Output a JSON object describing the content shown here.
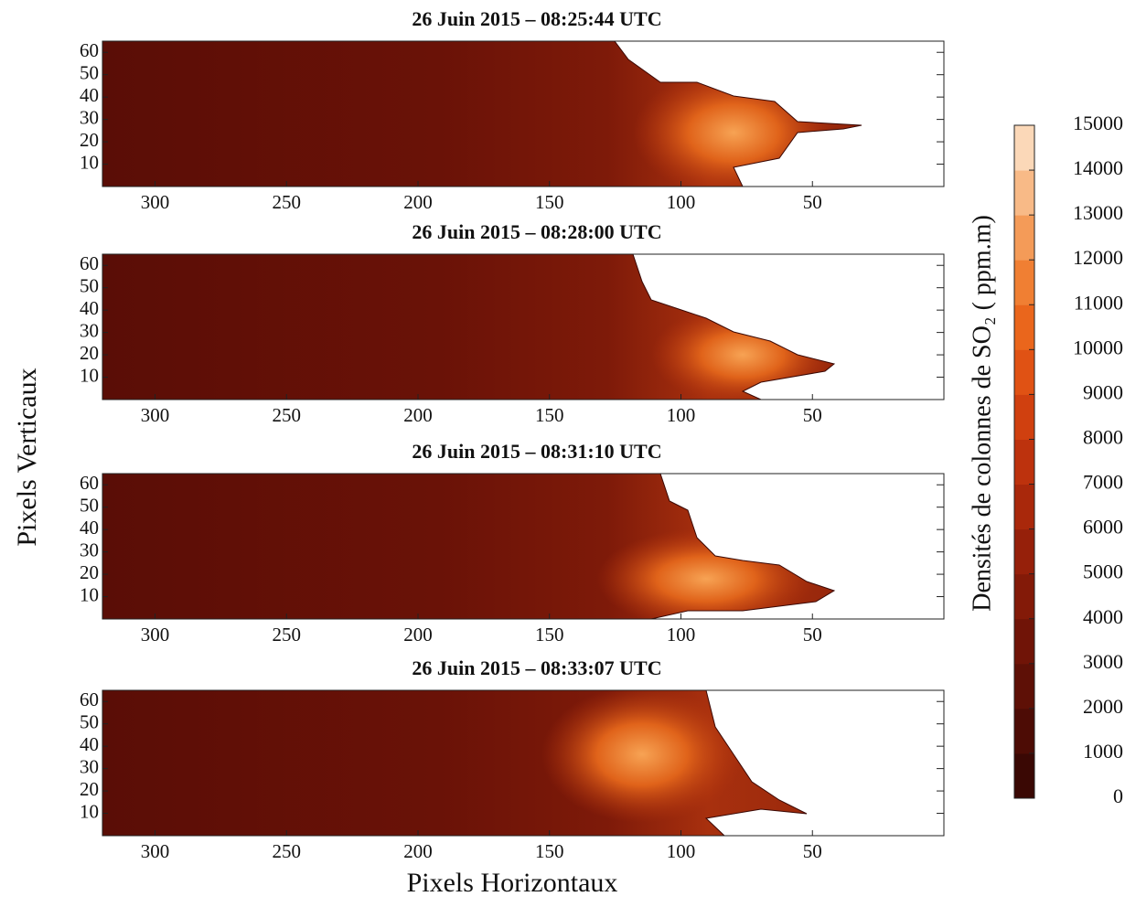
{
  "figure": {
    "xlabel": "Pixels Horizontaux",
    "ylabel": "Pixels Verticaux"
  },
  "chart_data": [
    {
      "type": "heatmap",
      "title": "26 Juin 2015 – 08:25:44 UTC",
      "xlim": [
        320,
        0
      ],
      "ylim": [
        0,
        65
      ],
      "xticks": [
        300,
        250,
        200,
        150,
        100,
        50
      ],
      "yticks": [
        10,
        20,
        30,
        40,
        50,
        60
      ]
    },
    {
      "type": "heatmap",
      "title": "26 Juin 2015 – 08:28:00 UTC",
      "xlim": [
        320,
        0
      ],
      "ylim": [
        0,
        65
      ],
      "xticks": [
        300,
        250,
        200,
        150,
        100,
        50
      ],
      "yticks": [
        10,
        20,
        30,
        40,
        50,
        60
      ]
    },
    {
      "type": "heatmap",
      "title": "26 Juin 2015 – 08:31:10 UTC",
      "xlim": [
        320,
        0
      ],
      "ylim": [
        0,
        65
      ],
      "xticks": [
        300,
        250,
        200,
        150,
        100,
        50
      ],
      "yticks": [
        10,
        20,
        30,
        40,
        50,
        60
      ]
    },
    {
      "type": "heatmap",
      "title": "26 Juin 2015 – 08:33:07 UTC",
      "xlim": [
        320,
        0
      ],
      "ylim": [
        0,
        65
      ],
      "xticks": [
        300,
        250,
        200,
        150,
        100,
        50
      ],
      "yticks": [
        10,
        20,
        30,
        40,
        50,
        60
      ]
    }
  ],
  "colorbar": {
    "label": "Densités de colonnes de SO₂ ( ppm.m)",
    "lim": [
      0,
      15000
    ],
    "ticks": [
      0,
      1000,
      2000,
      3000,
      4000,
      5000,
      6000,
      7000,
      8000,
      9000,
      10000,
      11000,
      12000,
      13000,
      14000,
      15000
    ],
    "colors": [
      "#3a0804",
      "#4d0c05",
      "#5e1006",
      "#701407",
      "#831a08",
      "#96200a",
      "#a9280b",
      "#bd320d",
      "#d0400f",
      "#e05214",
      "#ea661c",
      "#f07f33",
      "#f49b58",
      "#f8ba87",
      "#fbd8b8"
    ]
  }
}
